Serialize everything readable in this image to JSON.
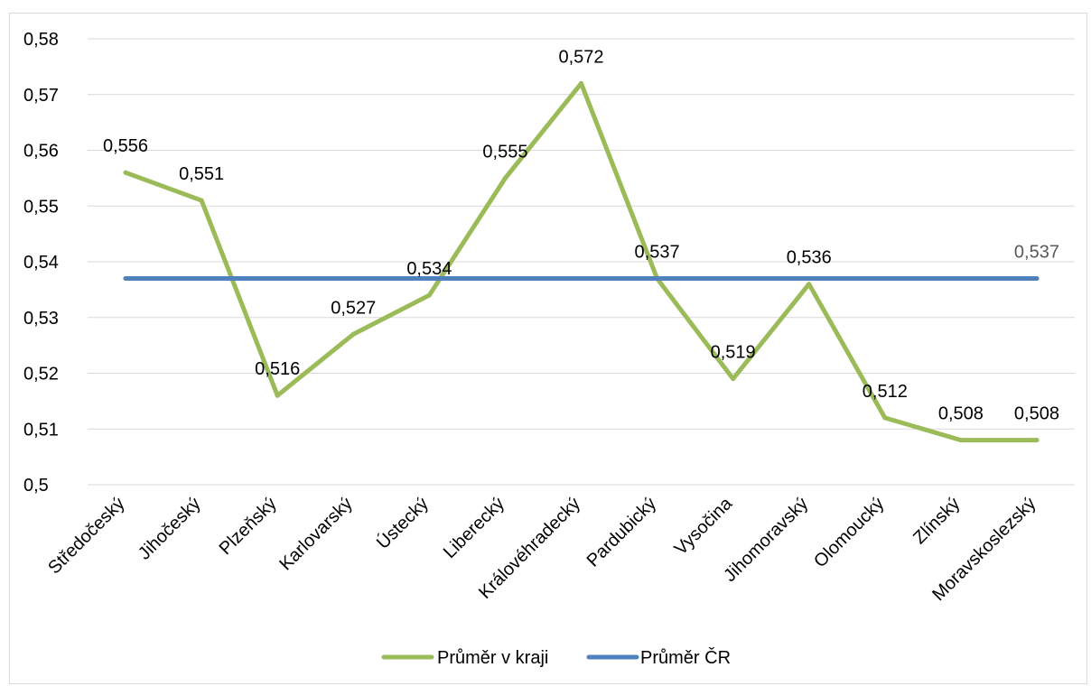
{
  "chart_data": {
    "type": "line",
    "categories": [
      "Středočeský",
      "Jihočeský",
      "Plzeňský",
      "Karlovarský",
      "Ústecký",
      "Liberecký",
      "Královéhradecký",
      "Pardubický",
      "Vysočina",
      "Jihomoravský",
      "Olomoucký",
      "Zlínský",
      "Moravskoslezský"
    ],
    "series": [
      {
        "name": "Průměr v kraji",
        "color": "#9BBB59",
        "values": [
          0.556,
          0.551,
          0.516,
          0.527,
          0.534,
          0.555,
          0.572,
          0.537,
          0.519,
          0.536,
          0.512,
          0.508,
          0.508
        ],
        "data_labels": [
          "0,556",
          "0,551",
          "0,516",
          "0,527",
          "0,534",
          "0,555",
          "0,572",
          "0,537",
          "0,519",
          "0,536",
          "0,512",
          "0,508",
          "0,508"
        ]
      },
      {
        "name": "Průměr ČR",
        "color": "#4F81BD",
        "values": [
          0.537,
          0.537,
          0.537,
          0.537,
          0.537,
          0.537,
          0.537,
          0.537,
          0.537,
          0.537,
          0.537,
          0.537,
          0.537
        ],
        "data_labels": [
          "",
          "",
          "",
          "",
          "",
          "",
          "",
          "",
          "",
          "",
          "",
          "",
          "0,537"
        ]
      }
    ],
    "ylim": [
      0.5,
      0.58
    ],
    "yticks": [
      "0,5",
      "0,51",
      "0,52",
      "0,53",
      "0,54",
      "0,55",
      "0,56",
      "0,57",
      "0,58"
    ],
    "ytick_values": [
      0.5,
      0.51,
      0.52,
      0.53,
      0.54,
      0.55,
      0.56,
      0.57,
      0.58
    ],
    "grid": true,
    "legend_position": "bottom"
  }
}
